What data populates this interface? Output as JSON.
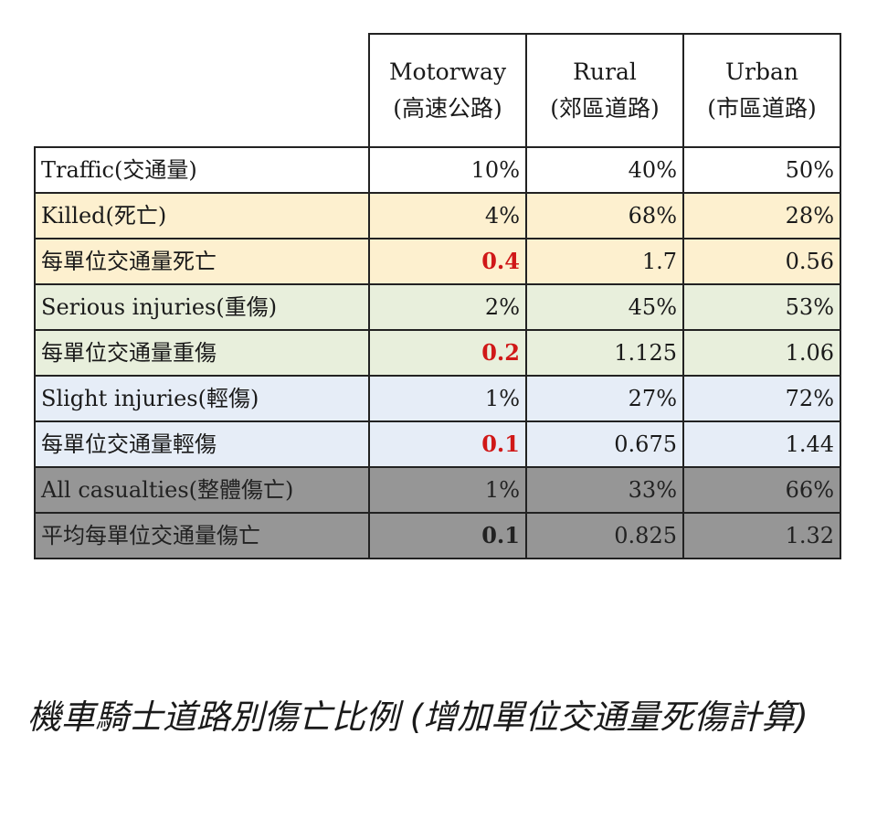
{
  "chart_data": {
    "type": "table",
    "columns": [
      {
        "name": "Motorway",
        "sub": "(高速公路)"
      },
      {
        "name": "Rural",
        "sub": "(郊區道路)"
      },
      {
        "name": "Urban",
        "sub": "(市區道路)"
      }
    ],
    "rows": [
      {
        "label": "Traffic(交通量)",
        "values": [
          "10%",
          "40%",
          "50%"
        ],
        "highlight_first": false,
        "band": "white"
      },
      {
        "label": "Killed(死亡)",
        "values": [
          "4%",
          "68%",
          "28%"
        ],
        "highlight_first": false,
        "band": "yellow"
      },
      {
        "label": "每單位交通量死亡",
        "values": [
          "0.4",
          "1.7",
          "0.56"
        ],
        "highlight_first": true,
        "band": "yellow"
      },
      {
        "label": "Serious injuries(重傷)",
        "values": [
          "2%",
          "45%",
          "53%"
        ],
        "highlight_first": false,
        "band": "green"
      },
      {
        "label": "每單位交通量重傷",
        "values": [
          "0.2",
          "1.125",
          "1.06"
        ],
        "highlight_first": true,
        "band": "green"
      },
      {
        "label": "Slight injuries(輕傷)",
        "values": [
          "1%",
          "27%",
          "72%"
        ],
        "highlight_first": false,
        "band": "blue"
      },
      {
        "label": "每單位交通量輕傷",
        "values": [
          "0.1",
          "0.675",
          "1.44"
        ],
        "highlight_first": true,
        "band": "blue"
      },
      {
        "label": "All casualties(整體傷亡)",
        "values": [
          "1%",
          "33%",
          "66%"
        ],
        "highlight_first": false,
        "band": "grey"
      },
      {
        "label": "平均每單位交通量傷亡",
        "values": [
          "0.1",
          "0.825",
          "1.32"
        ],
        "highlight_first": true,
        "band": "grey"
      }
    ],
    "colors": {
      "yellow": "#fdf0cf",
      "green": "#e8efdc",
      "blue": "#e6edf7",
      "grey": "#969696",
      "highlight_text": "#d01818"
    }
  },
  "caption": "機車騎士道路別傷亡比例 (增加單位交通量死傷計算)"
}
